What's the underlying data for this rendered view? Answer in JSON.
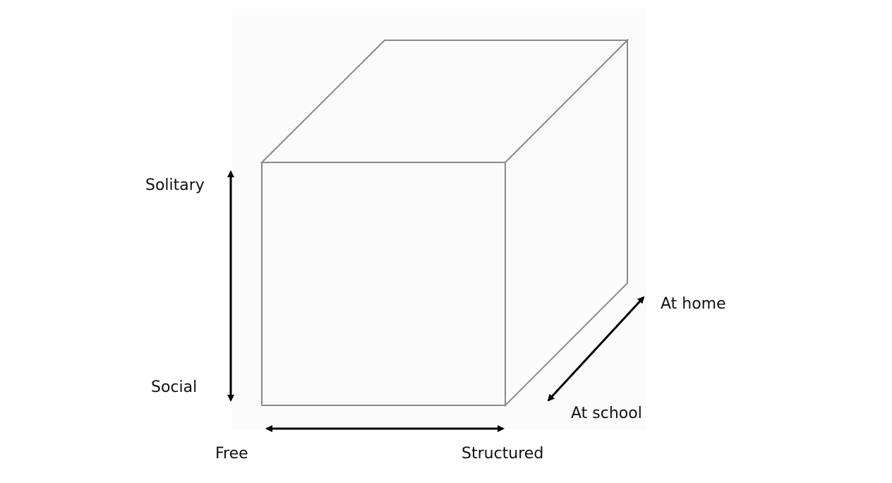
{
  "diagram": {
    "labels": {
      "solitary": "Solitary",
      "social": "Social",
      "free": "Free",
      "structured": "Structured",
      "at_home": "At home",
      "at_school": "At school"
    },
    "colors": {
      "background": "#ffffff",
      "panel": "#fbfbfb",
      "cube_edge": "#8a8a8a",
      "arrow": "#000000",
      "text": "#111111"
    }
  }
}
